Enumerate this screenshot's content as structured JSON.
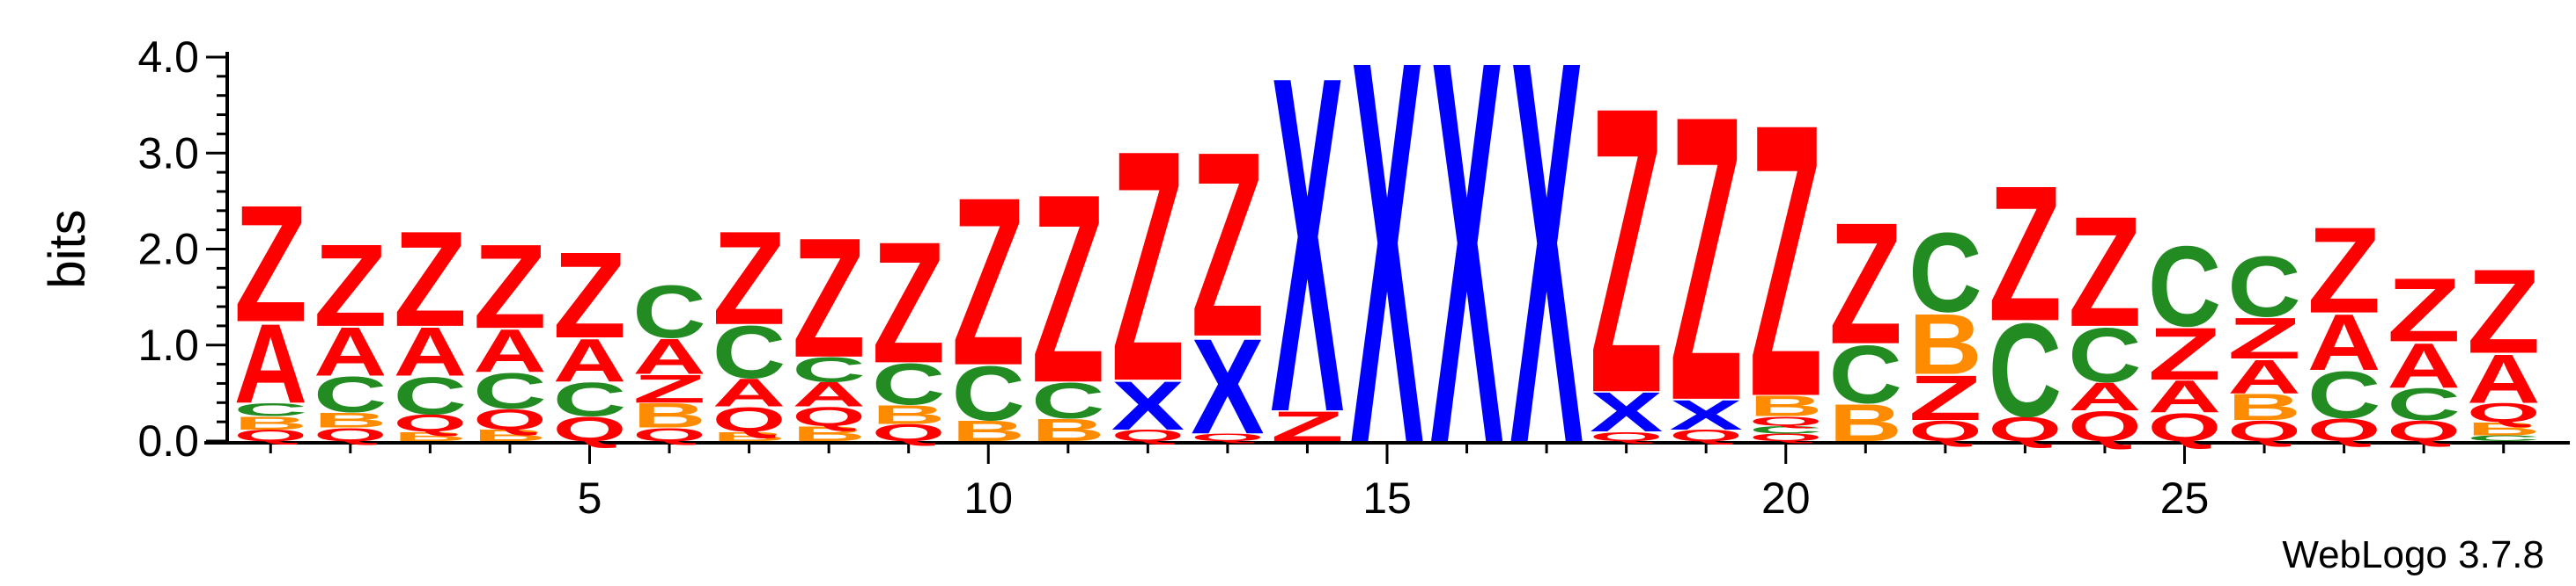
{
  "chart_data": {
    "type": "sequence-logo",
    "ylabel": "bits",
    "ylim": [
      0,
      4.0
    ],
    "y_ticks": [
      "0.0",
      "1.0",
      "2.0",
      "3.0",
      "4.0"
    ],
    "x_ticks": [
      5,
      10,
      15,
      20,
      25
    ],
    "positions": [
      1,
      29
    ],
    "colors": {
      "Z": "#ff0000",
      "Q": "#ff0000",
      "A": "#ff0000",
      "C": "#228b22",
      "B": "#ff8c00",
      "X": "#0000ff"
    },
    "stacks": [
      [
        [
          "Q",
          0.12
        ],
        [
          "B",
          0.14
        ],
        [
          "C",
          0.14
        ],
        [
          "A",
          0.85
        ],
        [
          "Z",
          1.25
        ]
      ],
      [
        [
          "Q",
          0.14
        ],
        [
          "B",
          0.16
        ],
        [
          "C",
          0.38
        ],
        [
          "A",
          0.52
        ],
        [
          "Z",
          0.88
        ]
      ],
      [
        [
          "B",
          0.1
        ],
        [
          "Q",
          0.18
        ],
        [
          "C",
          0.4
        ],
        [
          "A",
          0.52
        ],
        [
          "Z",
          1.02
        ]
      ],
      [
        [
          "B",
          0.12
        ],
        [
          "Q",
          0.22
        ],
        [
          "C",
          0.38
        ],
        [
          "A",
          0.46
        ],
        [
          "Z",
          0.9
        ]
      ],
      [
        [
          "Q",
          0.26
        ],
        [
          "C",
          0.36
        ],
        [
          "A",
          0.46
        ],
        [
          "Z",
          0.92
        ]
      ],
      [
        [
          "Q",
          0.14
        ],
        [
          "B",
          0.26
        ],
        [
          "Z",
          0.3
        ],
        [
          "A",
          0.38
        ],
        [
          "C",
          0.56
        ]
      ],
      [
        [
          "B",
          0.1
        ],
        [
          "Q",
          0.26
        ],
        [
          "A",
          0.3
        ],
        [
          "C",
          0.56
        ],
        [
          "Z",
          1.0
        ]
      ],
      [
        [
          "B",
          0.16
        ],
        [
          "Q",
          0.2
        ],
        [
          "A",
          0.26
        ],
        [
          "C",
          0.26
        ],
        [
          "Z",
          1.28
        ]
      ],
      [
        [
          "Q",
          0.18
        ],
        [
          "B",
          0.2
        ],
        [
          "C",
          0.44
        ],
        [
          "Z",
          1.3
        ]
      ],
      [
        [
          "B",
          0.22
        ],
        [
          "C",
          0.58
        ],
        [
          "Z",
          1.8
        ]
      ],
      [
        [
          "B",
          0.24
        ],
        [
          "C",
          0.38
        ],
        [
          "Z",
          2.02
        ]
      ],
      [
        [
          "Q",
          0.12
        ],
        [
          "X",
          0.52
        ],
        [
          "Z",
          2.47
        ]
      ],
      [
        [
          "Q",
          0.08
        ],
        [
          "X",
          1.02
        ],
        [
          "Z",
          1.98
        ]
      ],
      [
        [
          "Z",
          0.32
        ],
        [
          "X",
          3.6
        ]
      ],
      [
        [
          "X",
          4.1
        ]
      ],
      [
        [
          "X",
          4.1
        ]
      ],
      [
        [
          "X",
          4.1
        ]
      ],
      [
        [
          "Q",
          0.1
        ],
        [
          "X",
          0.42
        ],
        [
          "Z",
          3.06
        ]
      ],
      [
        [
          "Q",
          0.12
        ],
        [
          "X",
          0.32
        ],
        [
          "Z",
          3.05
        ]
      ],
      [
        [
          "Q",
          0.08
        ],
        [
          "C",
          0.08
        ],
        [
          "Q",
          0.1
        ],
        [
          "B",
          0.22
        ],
        [
          "Z",
          2.92
        ]
      ],
      [
        [
          "B",
          0.4
        ],
        [
          "C",
          0.62
        ],
        [
          "Z",
          1.3
        ]
      ],
      [
        [
          "Q",
          0.22
        ],
        [
          "Z",
          0.48
        ],
        [
          "B",
          0.65
        ],
        [
          "C",
          0.85
        ]
      ],
      [
        [
          "Q",
          0.26
        ],
        [
          "C",
          1.0
        ],
        [
          "Z",
          1.45
        ]
      ],
      [
        [
          "Q",
          0.32
        ],
        [
          "A",
          0.3
        ],
        [
          "C",
          0.58
        ],
        [
          "Z",
          1.18
        ]
      ],
      [
        [
          "Q",
          0.3
        ],
        [
          "A",
          0.34
        ],
        [
          "Z",
          0.56
        ],
        [
          "C",
          0.86
        ]
      ],
      [
        [
          "Q",
          0.22
        ],
        [
          "B",
          0.28
        ],
        [
          "A",
          0.36
        ],
        [
          "Z",
          0.44
        ],
        [
          "C",
          0.65
        ]
      ],
      [
        [
          "Q",
          0.24
        ],
        [
          "C",
          0.5
        ],
        [
          "A",
          0.6
        ],
        [
          "Z",
          0.92
        ]
      ],
      [
        [
          "Q",
          0.22
        ],
        [
          "C",
          0.34
        ],
        [
          "A",
          0.48
        ],
        [
          "Z",
          0.68
        ]
      ],
      [
        [
          "C",
          0.06
        ],
        [
          "B",
          0.14
        ],
        [
          "Q",
          0.2
        ],
        [
          "A",
          0.52
        ],
        [
          "Z",
          0.9
        ]
      ]
    ]
  },
  "credit": "WebLogo 3.7.8"
}
